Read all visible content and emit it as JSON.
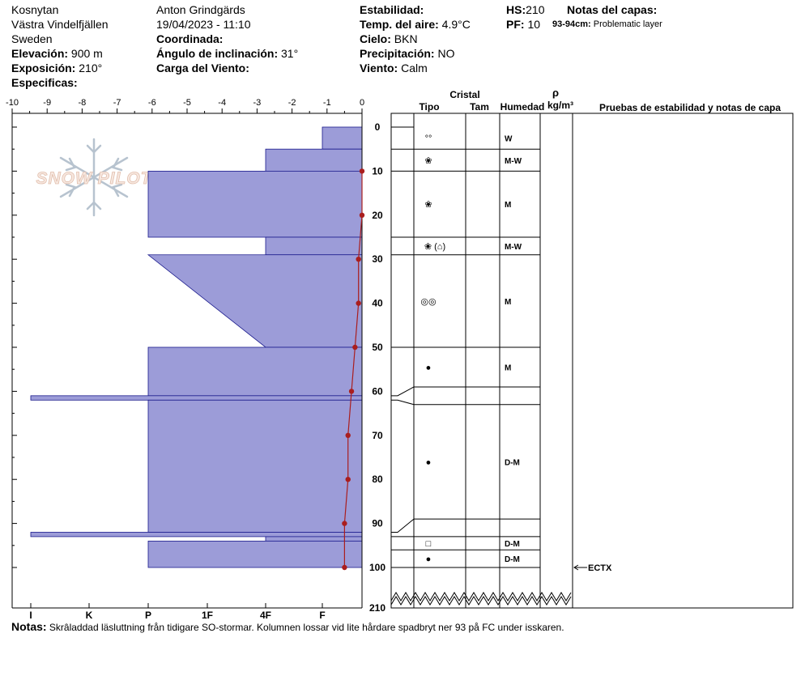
{
  "header": {
    "location": "Kosnytan",
    "region": "Västra Vindelfjällen",
    "country": "Sweden",
    "elevation_label": "Elevación:",
    "elevation_value": "900 m",
    "aspect_label": "Exposición:",
    "aspect_value": "210°",
    "specifics_label": "Especificas:",
    "observer": "Anton Grindgärds",
    "datetime": "19/04/2023 - 11:10",
    "coord_label": "Coordinada:",
    "slope_label": "Ángulo de inclinación:",
    "slope_value": "31°",
    "wind_load_label": "Carga del Viento:",
    "stability_label": "Estabilidad:",
    "air_temp_label": "Temp. del aire:",
    "air_temp_value": "4.9°C",
    "sky_label": "Cielo:",
    "sky_value": "BKN",
    "precip_label": "Precipitación:",
    "precip_value": "NO",
    "wind_label": "Viento:",
    "wind_value": "Calm",
    "hs_label": "HS:",
    "hs_value": "210",
    "pf_label": "PF:",
    "pf_value": "10",
    "layer_notes_label": "Notas del capas:",
    "layer_note_range": "93-94cm:",
    "layer_note_text": "Problematic layer"
  },
  "watermark": "SNOW PILOT",
  "columns": {
    "crystal": "Cristal",
    "type": "Tipo",
    "size": "Tam",
    "moisture": "Humedad",
    "rho": "ρ",
    "density_unit": "kg/m³",
    "tests": "Pruebas de estabilidad y notas de capa"
  },
  "chart_data": {
    "type": "profile",
    "temp_axis_ticks": [
      "-10",
      "-9",
      "-8",
      "-7",
      "-6",
      "-5",
      "-4",
      "-3",
      "-2",
      "-1",
      "0"
    ],
    "temp_range": [
      -10,
      0
    ],
    "hardness_ticks": [
      "I",
      "K",
      "P",
      "1F",
      "4F",
      "F"
    ],
    "depth_ticks": [
      "0",
      "10",
      "20",
      "30",
      "40",
      "50",
      "60",
      "70",
      "80",
      "90",
      "100",
      "210"
    ],
    "depth_range": [
      0,
      100
    ],
    "total_depth": 210,
    "hardness_layers": [
      {
        "top": 0,
        "bottom": 5,
        "hardness": "F"
      },
      {
        "top": 5,
        "bottom": 10,
        "hardness": "4F"
      },
      {
        "top": 10,
        "bottom": 25,
        "hardness": "P"
      },
      {
        "top": 25,
        "bottom": 29,
        "hardness": "4F-"
      },
      {
        "top": 29,
        "bottom": 50,
        "hardness_top": "P",
        "hardness_bottom": "4F"
      },
      {
        "top": 50,
        "bottom": 61,
        "hardness": "P"
      },
      {
        "top": 61,
        "bottom": 62,
        "hardness": "I"
      },
      {
        "top": 62,
        "bottom": 92,
        "hardness": "P"
      },
      {
        "top": 92,
        "bottom": 93,
        "hardness": "I"
      },
      {
        "top": 93,
        "bottom": 94,
        "hardness": "4F"
      },
      {
        "top": 94,
        "bottom": 100,
        "hardness": "P"
      }
    ],
    "temperature_profile": [
      {
        "depth": 10,
        "temp": 0.0
      },
      {
        "depth": 20,
        "temp": 0.0
      },
      {
        "depth": 30,
        "temp": -0.1
      },
      {
        "depth": 40,
        "temp": -0.1
      },
      {
        "depth": 50,
        "temp": -0.2
      },
      {
        "depth": 60,
        "temp": -0.3
      },
      {
        "depth": 70,
        "temp": -0.4
      },
      {
        "depth": 80,
        "temp": -0.4
      },
      {
        "depth": 90,
        "temp": -0.5
      },
      {
        "depth": 100,
        "temp": -0.5
      }
    ],
    "layers": [
      {
        "top": 0,
        "bottom": 5,
        "grain": "°°",
        "moisture": "W"
      },
      {
        "top": 5,
        "bottom": 10,
        "grain": "❀",
        "moisture": "M-W"
      },
      {
        "top": 10,
        "bottom": 25,
        "grain": "❀",
        "moisture": "M"
      },
      {
        "top": 25,
        "bottom": 29,
        "grain": "❀ (⌂)",
        "moisture": "M-W"
      },
      {
        "top": 29,
        "bottom": 50,
        "grain": "◎◎",
        "moisture": "M"
      },
      {
        "top": 50,
        "bottom": 59,
        "grain": "●",
        "moisture": "M"
      },
      {
        "top": 59,
        "bottom": 63,
        "grain": "",
        "moisture": ""
      },
      {
        "top": 63,
        "bottom": 89,
        "grain": "●",
        "moisture": "D-M"
      },
      {
        "top": 89,
        "bottom": 93,
        "grain": "",
        "moisture": ""
      },
      {
        "top": 93,
        "bottom": 96,
        "grain": "□",
        "moisture": "D-M"
      },
      {
        "top": 96,
        "bottom": 100,
        "grain": "●",
        "moisture": "D-M"
      }
    ],
    "stability_tests": [
      {
        "depth": 100,
        "result": "ECTX"
      }
    ],
    "colors": {
      "hardness_fill": "#9c9cd8",
      "hardness_stroke": "#1a1a8c",
      "temp_line": "#aa1e1e"
    }
  },
  "notes": {
    "label": "Notas:",
    "text": "Skrâladdad läsluttning från tidigare SO-stormar. Kolumnen lossar vid lite hårdare spadbryt ner 93 på FC under isskaren."
  }
}
